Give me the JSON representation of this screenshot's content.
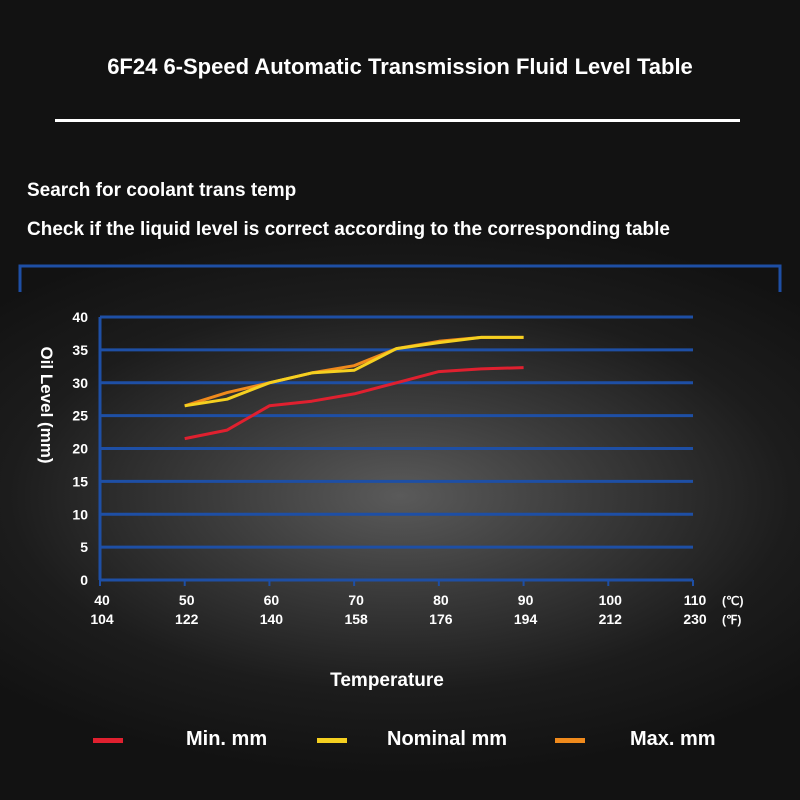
{
  "title": "6F24 6-Speed Automatic Transmission Fluid Level Table",
  "notes": [
    "Search for coolant trans temp",
    "Check if the liquid level is correct according to the corresponding table"
  ],
  "colors": {
    "grid": "#1e4fa5",
    "min": "#e0202f",
    "nominal": "#f5d020",
    "max": "#f08a1c"
  },
  "chart_data": {
    "type": "line",
    "ylabel": "Oil Level (mm)",
    "xlabel": "Temperature",
    "ylim": [
      0,
      40
    ],
    "yticks": [
      "0",
      "5",
      "10",
      "15",
      "20",
      "25",
      "30",
      "35",
      "40"
    ],
    "xlim": [
      40,
      110
    ],
    "xticks_c": [
      "40",
      "50",
      "60",
      "70",
      "80",
      "90",
      "100",
      "110"
    ],
    "xticks_f": [
      "104",
      "122",
      "140",
      "158",
      "176",
      "194",
      "212",
      "230"
    ],
    "unit_c": "(℃)",
    "unit_f": "(℉)",
    "grid": true,
    "legend_position": "bottom",
    "series": [
      {
        "name": "Min. mm",
        "color_key": "min",
        "x": [
          50,
          55,
          60,
          65,
          70,
          75,
          80,
          85,
          90
        ],
        "y": [
          21.5,
          22.8,
          26.5,
          27.2,
          28.3,
          30.0,
          31.7,
          32.1,
          32.3
        ]
      },
      {
        "name": "Nominal mm",
        "color_key": "nominal",
        "x": [
          50,
          55,
          60,
          65,
          70,
          75,
          80,
          85,
          90
        ],
        "y": [
          26.5,
          27.5,
          30.0,
          31.5,
          31.9,
          35.2,
          36.1,
          36.9,
          36.9
        ]
      },
      {
        "name": "Max. mm",
        "color_key": "max",
        "x": [
          50,
          55,
          60,
          65,
          70,
          75,
          80,
          85,
          90
        ],
        "y": [
          26.5,
          28.5,
          30.0,
          31.5,
          32.6,
          35.2,
          36.3,
          36.9,
          36.9
        ]
      }
    ]
  }
}
